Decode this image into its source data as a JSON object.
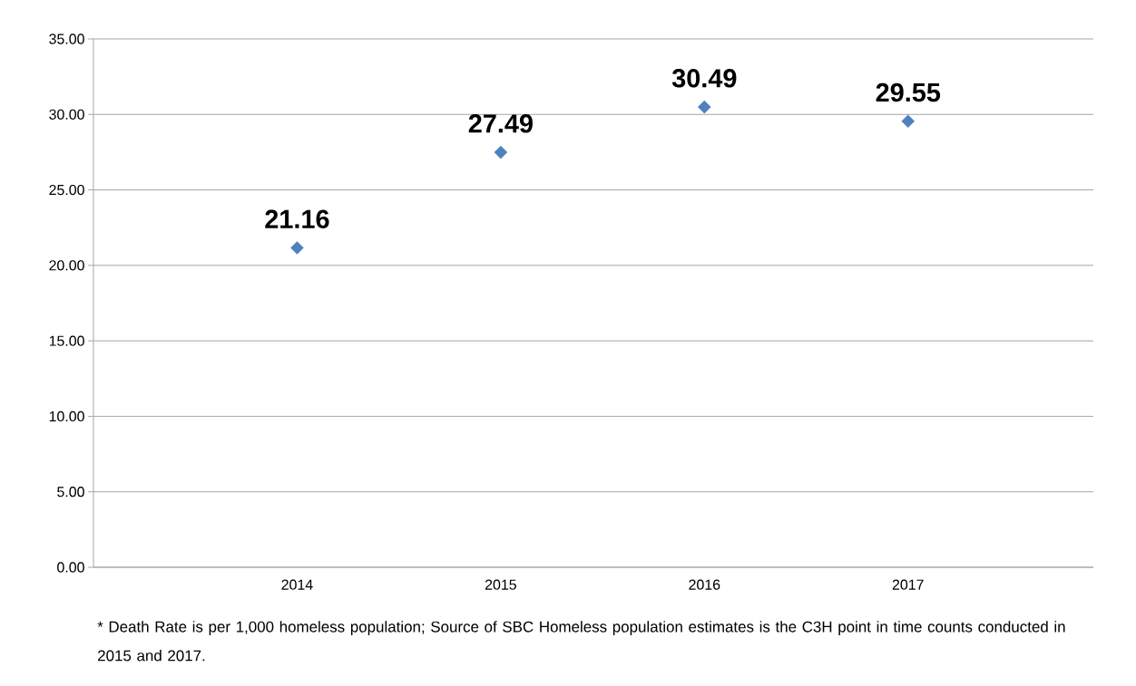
{
  "chart_data": {
    "type": "scatter",
    "categories": [
      "2014",
      "2015",
      "2016",
      "2017"
    ],
    "values": [
      21.16,
      27.49,
      30.49,
      29.55
    ],
    "color": "#4f81bd",
    "marker": "diamond",
    "data_labels": true,
    "grid": "y",
    "ylim": [
      0,
      35
    ],
    "yticks": [
      {
        "value": 0,
        "label": "0.00"
      },
      {
        "value": 5,
        "label": "5.00"
      },
      {
        "value": 10,
        "label": "10.00"
      },
      {
        "value": 15,
        "label": "15.00"
      },
      {
        "value": 20,
        "label": "20.00"
      },
      {
        "value": 25,
        "label": "25.00"
      },
      {
        "value": 30,
        "label": "30.00"
      },
      {
        "value": 35,
        "label": "35.00"
      }
    ],
    "annotations": [
      "* Death Rate is per 1,000 homeless population; Source of SBC Homeless population estimates is the C3H point in time counts conducted in 2015 and 2017."
    ]
  }
}
